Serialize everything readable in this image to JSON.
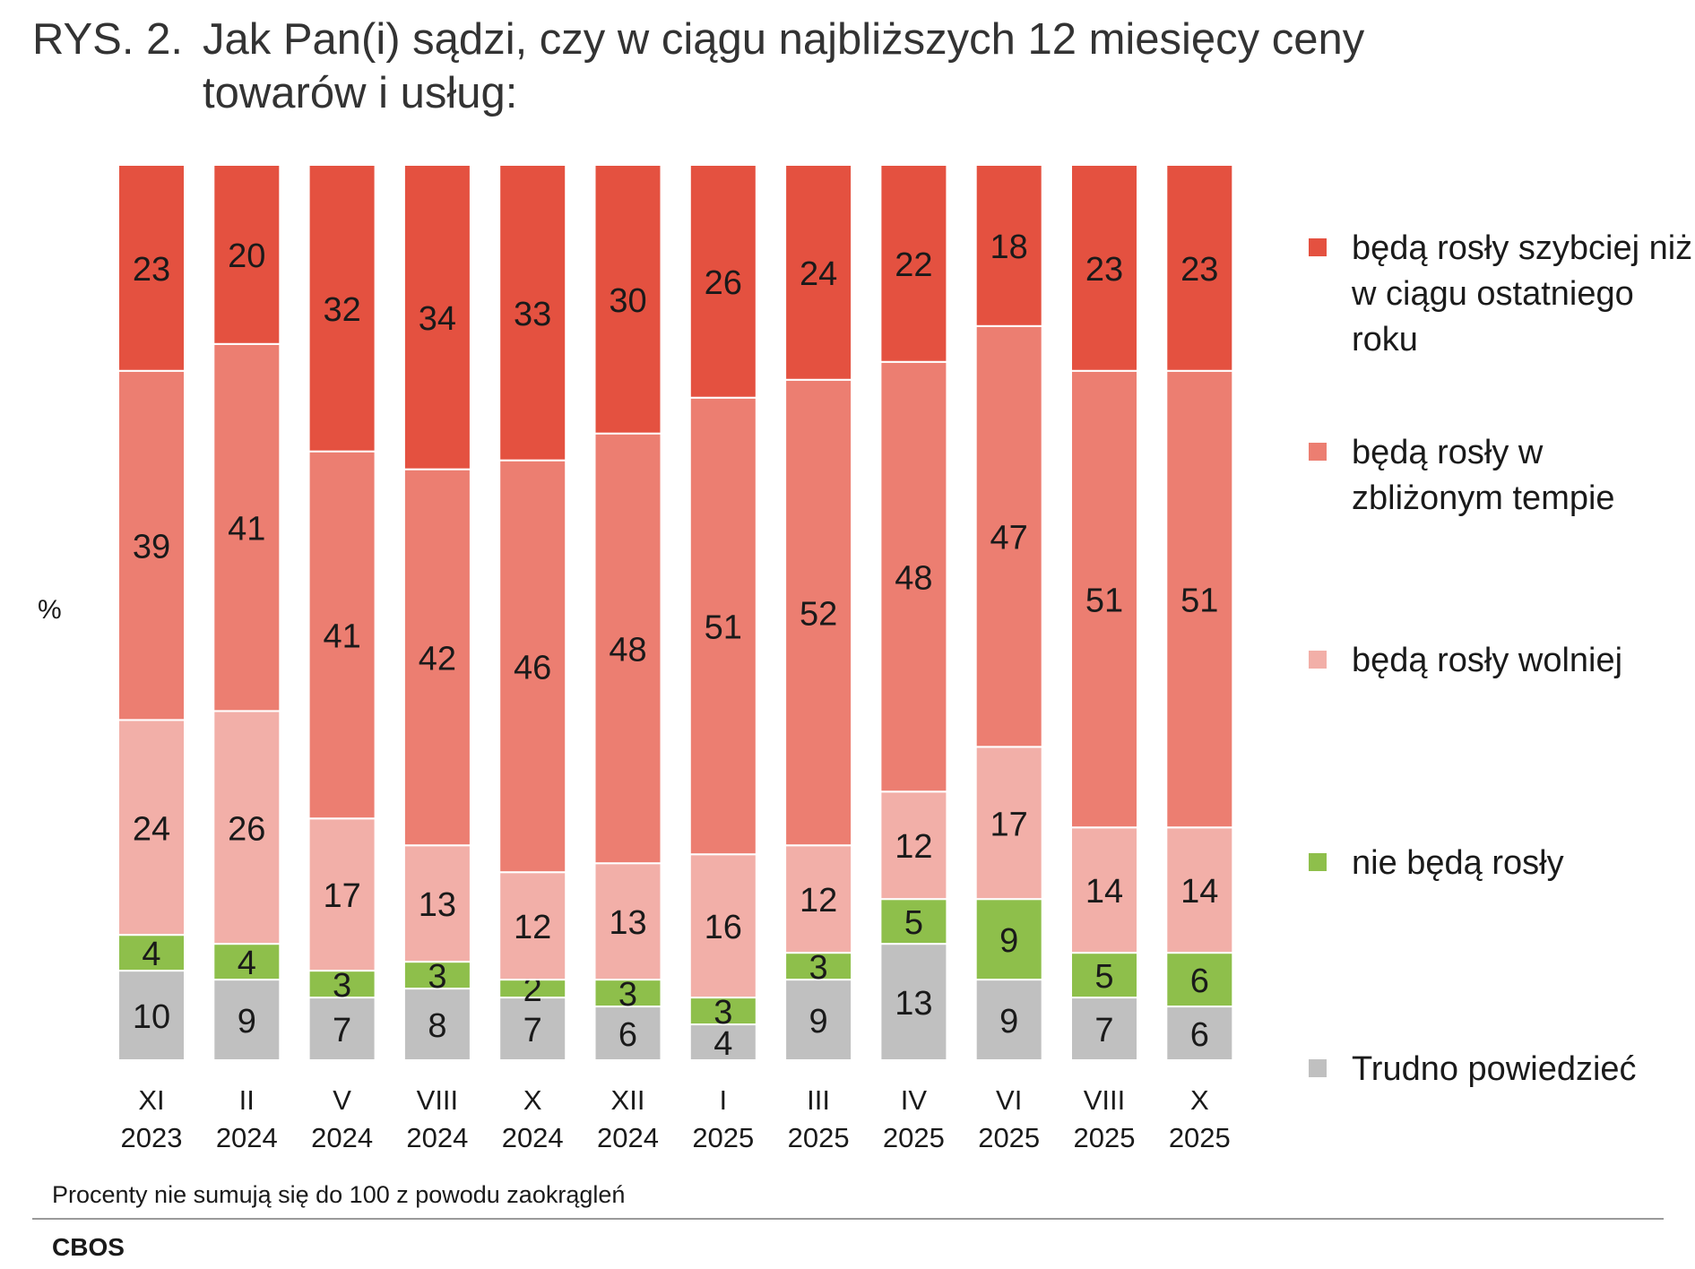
{
  "title": {
    "prefix": "RYS. 2.",
    "text": "Jak Pan(i) sądzi, czy w ciągu najbliższych 12 miesięcy ceny towarów i usług:"
  },
  "footnote": "Procenty nie sumują się do 100 z powodu zaokrągleń",
  "source": "CBOS",
  "chart_data": {
    "type": "bar",
    "stacked": true,
    "ylabel": "%",
    "ylim": [
      0,
      100
    ],
    "grid": false,
    "legend_position": "right",
    "categories": [
      [
        "XI",
        "2023"
      ],
      [
        "II",
        "2024"
      ],
      [
        "V",
        "2024"
      ],
      [
        "VIII",
        "2024"
      ],
      [
        "X",
        "2024"
      ],
      [
        "XII",
        "2024"
      ],
      [
        "I",
        "2025"
      ],
      [
        "III",
        "2025"
      ],
      [
        "IV",
        "2025"
      ],
      [
        "VI",
        "2025"
      ],
      [
        "VIII",
        "2025"
      ],
      [
        "X",
        "2025"
      ]
    ],
    "series": [
      {
        "name": "Trudno powiedzieć",
        "color": "#c0c0c0",
        "values": [
          10,
          9,
          7,
          8,
          7,
          6,
          4,
          9,
          13,
          9,
          7,
          6
        ]
      },
      {
        "name": "nie będą rosły",
        "color": "#8ebf4b",
        "values": [
          4,
          4,
          3,
          3,
          2,
          3,
          3,
          3,
          5,
          9,
          5,
          6
        ]
      },
      {
        "name": "będą rosły wolniej",
        "color": "#f2afa8",
        "values": [
          24,
          26,
          17,
          13,
          12,
          13,
          16,
          12,
          12,
          17,
          14,
          14
        ]
      },
      {
        "name": "będą rosły w zbliżonym tempie",
        "color": "#ec7e71",
        "values": [
          39,
          41,
          41,
          42,
          46,
          48,
          51,
          52,
          48,
          47,
          51,
          51
        ]
      },
      {
        "name": "będą rosły szybciej niż w ciągu ostatniego roku",
        "color": "#e45140",
        "values": [
          23,
          20,
          32,
          34,
          33,
          30,
          26,
          24,
          22,
          18,
          23,
          23
        ]
      }
    ],
    "legend_order": [
      "będą rosły szybciej niż w ciągu ostatniego roku",
      "będą rosły w zbliżonym tempie",
      "będą rosły wolniej",
      "nie będą rosły",
      "Trudno powiedzieć"
    ]
  }
}
